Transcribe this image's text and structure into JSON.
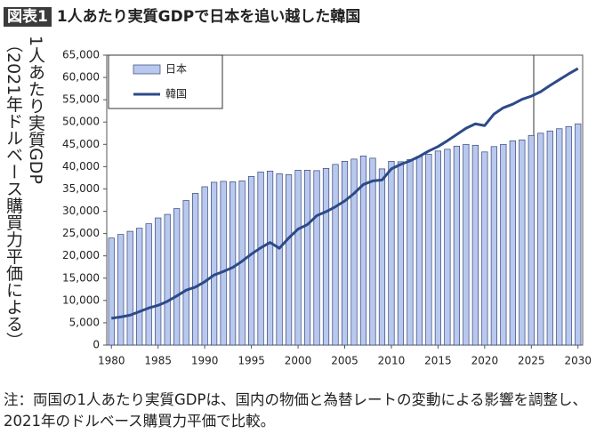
{
  "chart_data": {
    "type": "bar",
    "badge": "図表1",
    "title": "1人あたり実質GDPで日本を追い越した韓国",
    "y_label": "1人あたり実質GDP",
    "y_label_sub": "（2021年ドルベース購買力平価による）",
    "note": "注：両国の1人あたり実質GDPは、国内の物価と為替レートの変動による影響を調整し、2021年のドルベース購買力平価で比較。",
    "x": [
      1980,
      1981,
      1982,
      1983,
      1984,
      1985,
      1986,
      1987,
      1988,
      1989,
      1990,
      1991,
      1992,
      1993,
      1994,
      1995,
      1996,
      1997,
      1998,
      1999,
      2000,
      2001,
      2002,
      2003,
      2004,
      2005,
      2006,
      2007,
      2008,
      2009,
      2010,
      2011,
      2012,
      2013,
      2014,
      2015,
      2016,
      2017,
      2018,
      2019,
      2020,
      2021,
      2022,
      2023,
      2024,
      2025,
      2026,
      2027,
      2028,
      2029,
      2030
    ],
    "series": [
      {
        "name": "日本",
        "type": "bar",
        "color": "#b9c8ee",
        "values": [
          24000,
          24800,
          25500,
          26200,
          27200,
          28500,
          29300,
          30600,
          32400,
          34000,
          35500,
          36500,
          36700,
          36600,
          36800,
          37800,
          38800,
          39000,
          38400,
          38200,
          39200,
          39200,
          39100,
          39600,
          40500,
          41200,
          41700,
          42400,
          41900,
          39500,
          41200,
          41100,
          41600,
          42300,
          42800,
          43500,
          43900,
          44600,
          45000,
          44800,
          43300,
          44500,
          45000,
          45800,
          46000,
          47000,
          47500,
          48000,
          48500,
          49000,
          49600
        ]
      },
      {
        "name": "韓国",
        "type": "line",
        "color": "#2c4a88",
        "values": [
          6000,
          6300,
          6700,
          7500,
          8300,
          8900,
          9800,
          11000,
          12300,
          13000,
          14200,
          15700,
          16500,
          17400,
          18800,
          20400,
          21800,
          23000,
          21700,
          24000,
          26000,
          27000,
          29000,
          29900,
          31000,
          32300,
          34000,
          36000,
          36800,
          37000,
          39500,
          40500,
          41300,
          42300,
          43500,
          44500,
          45800,
          47200,
          48600,
          49600,
          49200,
          51800,
          53200,
          54000,
          55100,
          55800,
          56800,
          58200,
          59500,
          60800,
          62000
        ]
      }
    ],
    "xlim": [
      1979.5,
      2030.5
    ],
    "xticks": [
      1980,
      1985,
      1990,
      1995,
      2000,
      2005,
      2010,
      2015,
      2020,
      2025,
      2030
    ],
    "ylim": [
      0,
      65000
    ],
    "yticks": [
      0,
      {
        "value": 5000,
        "label": "5,000"
      },
      {
        "value": 10000,
        "label": "10,000"
      },
      {
        "value": 15000,
        "label": "15,000"
      },
      {
        "value": 20000,
        "label": "20,000"
      },
      {
        "value": 25000,
        "label": "25,000"
      },
      {
        "value": 30000,
        "label": "30,000"
      },
      {
        "value": 35000,
        "label": "35,000"
      },
      {
        "value": 40000,
        "label": "40,000"
      },
      {
        "value": 45000,
        "label": "45,000"
      },
      {
        "value": 50000,
        "label": "50,000"
      },
      {
        "value": 55000,
        "label": "55,000"
      },
      {
        "value": 60000,
        "label": "60,000"
      },
      {
        "value": 65000,
        "label": "65,000"
      }
    ],
    "legend": "upper-left"
  }
}
